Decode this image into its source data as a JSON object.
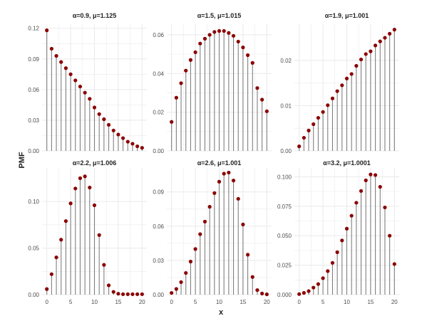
{
  "chart_data": {
    "type": "facet-lollipop",
    "xlabel": "x",
    "ylabel": "PMF",
    "colors": {
      "point": "#8b0000",
      "stem": "#7f7f7f",
      "grid": "#ebebeb",
      "text": "#222222",
      "tick": "#4d4d4d"
    },
    "grid": true,
    "panels": [
      {
        "title": "α=0.9, μ=1.125",
        "x": [
          0,
          1,
          2,
          3,
          4,
          5,
          6,
          7,
          8,
          9,
          10,
          11,
          12,
          13,
          14,
          15,
          16,
          17,
          18,
          19,
          20
        ],
        "values": [
          0.118,
          0.1,
          0.093,
          0.087,
          0.081,
          0.075,
          0.069,
          0.063,
          0.057,
          0.051,
          0.0425,
          0.036,
          0.031,
          0.0255,
          0.02,
          0.016,
          0.0125,
          0.009,
          0.007,
          0.0045,
          0.003
        ],
        "ylim": [
          0,
          0.124
        ],
        "yticks": [
          0,
          0.03,
          0.06,
          0.09,
          0.12
        ],
        "yticklabels": [
          "0.00",
          "0.03",
          "0.06",
          "0.09",
          "0.12"
        ]
      },
      {
        "title": "α=1.5, μ=1.015",
        "x": [
          0,
          1,
          2,
          3,
          4,
          5,
          6,
          7,
          8,
          9,
          10,
          11,
          12,
          13,
          14,
          15,
          16,
          17,
          18,
          19,
          20
        ],
        "values": [
          0.015,
          0.0275,
          0.035,
          0.0415,
          0.047,
          0.051,
          0.0555,
          0.058,
          0.06,
          0.0615,
          0.062,
          0.062,
          0.061,
          0.0595,
          0.0565,
          0.0535,
          0.0495,
          0.0455,
          0.0325,
          0.0265,
          0.0205
        ],
        "ylim": [
          0,
          0.0655
        ],
        "yticks": [
          0,
          0.02,
          0.04,
          0.06
        ],
        "yticklabels": [
          "0.00",
          "0.02",
          "0.04",
          "0.06"
        ]
      },
      {
        "title": "α=1.9, μ=1.001",
        "x": [
          0,
          1,
          2,
          3,
          4,
          5,
          6,
          7,
          8,
          9,
          10,
          11,
          12,
          13,
          14,
          15,
          16,
          17,
          18,
          19,
          20
        ],
        "values": [
          0.001,
          0.0029,
          0.0045,
          0.0059,
          0.0073,
          0.0086,
          0.0101,
          0.0116,
          0.0132,
          0.0145,
          0.016,
          0.017,
          0.0188,
          0.0202,
          0.0214,
          0.022,
          0.0233,
          0.0242,
          0.025,
          0.0259,
          0.0268
        ],
        "ylim": [
          0,
          0.028
        ],
        "yticks": [
          0,
          0.01,
          0.02
        ],
        "yticklabels": [
          "0.00",
          "0.01",
          "0.02"
        ]
      },
      {
        "title": "α=2.2, μ=1.006",
        "x": [
          0,
          1,
          2,
          3,
          4,
          5,
          6,
          7,
          8,
          9,
          10,
          11,
          12,
          13,
          14,
          15,
          16,
          17,
          18,
          19,
          20
        ],
        "values": [
          0.006,
          0.022,
          0.04,
          0.059,
          0.079,
          0.098,
          0.114,
          0.125,
          0.127,
          0.115,
          0.096,
          0.064,
          0.032,
          0.01,
          0.003,
          0.001,
          0.0005,
          0.0005,
          0.0005,
          0.0005,
          0.0005
        ],
        "ylim": [
          0,
          0.136
        ],
        "yticks": [
          0,
          0.05,
          0.1
        ],
        "yticklabels": [
          "0.00",
          "0.05",
          "0.10"
        ]
      },
      {
        "title": "α=2.6, μ=1.001",
        "x": [
          0,
          1,
          2,
          3,
          4,
          5,
          6,
          7,
          8,
          9,
          10,
          11,
          12,
          13,
          14,
          15,
          16,
          17,
          18,
          19,
          20
        ],
        "values": [
          0.0015,
          0.005,
          0.011,
          0.019,
          0.029,
          0.04,
          0.053,
          0.064,
          0.077,
          0.089,
          0.099,
          0.106,
          0.107,
          0.1,
          0.084,
          0.0615,
          0.035,
          0.0155,
          0.004,
          0.001,
          0.0003
        ],
        "ylim": [
          0,
          0.111
        ],
        "yticks": [
          0,
          0.03,
          0.06,
          0.09
        ],
        "yticklabels": [
          "0.00",
          "0.03",
          "0.06",
          "0.09"
        ]
      },
      {
        "title": "α=3.2, μ=1.0001",
        "x": [
          0,
          1,
          2,
          3,
          4,
          5,
          6,
          7,
          8,
          9,
          10,
          11,
          12,
          13,
          14,
          15,
          16,
          17,
          18,
          19,
          20
        ],
        "values": [
          0.0005,
          0.0015,
          0.003,
          0.006,
          0.009,
          0.014,
          0.02,
          0.027,
          0.036,
          0.046,
          0.056,
          0.067,
          0.078,
          0.088,
          0.097,
          0.102,
          0.1015,
          0.0915,
          0.074,
          0.05,
          0.026
        ],
        "ylim": [
          0,
          0.1075
        ],
        "yticks": [
          0,
          0.025,
          0.05,
          0.075,
          0.1
        ],
        "yticklabels": [
          "0.000",
          "0.025",
          "0.050",
          "0.075",
          "0.100"
        ]
      }
    ],
    "xlim": [
      -1,
      21
    ],
    "xticks": [
      0,
      5,
      10,
      15,
      20
    ],
    "xticklabels": [
      "0",
      "5",
      "10",
      "15",
      "20"
    ]
  }
}
